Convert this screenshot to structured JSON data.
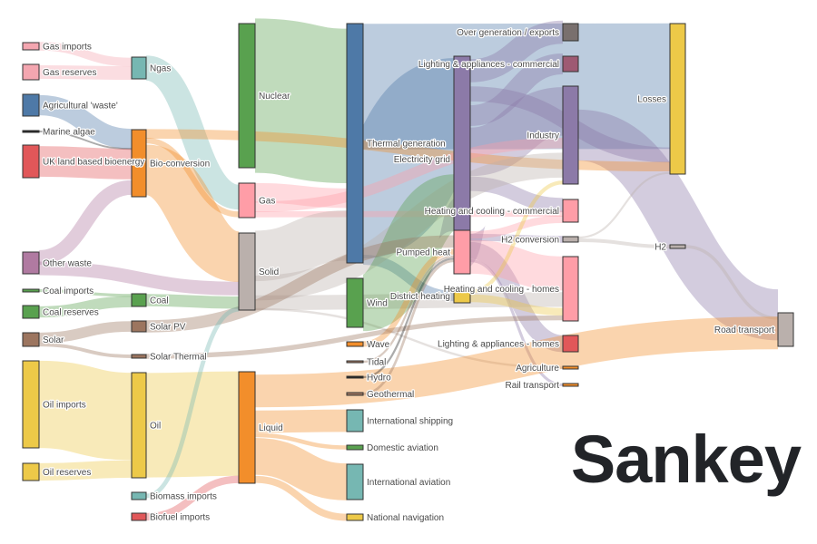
{
  "title": "Sankey",
  "chart_data": {
    "type": "sankey",
    "nodes": [
      {
        "name": "Gas imports",
        "color": "#f4a6b0"
      },
      {
        "name": "Gas reserves",
        "color": "#f4a6b0"
      },
      {
        "name": "Agricultural 'waste'",
        "color": "#4e79a7"
      },
      {
        "name": "Marine algae",
        "color": "#222222"
      },
      {
        "name": "UK land based bioenergy",
        "color": "#e15759"
      },
      {
        "name": "Other waste",
        "color": "#b07aa1"
      },
      {
        "name": "Coal imports",
        "color": "#59a14f"
      },
      {
        "name": "Coal reserves",
        "color": "#59a14f"
      },
      {
        "name": "Solar",
        "color": "#9c755f"
      },
      {
        "name": "Oil imports",
        "color": "#edc948"
      },
      {
        "name": "Oil reserves",
        "color": "#edc948"
      },
      {
        "name": "Ngas",
        "color": "#76b7b2"
      },
      {
        "name": "Bio-conversion",
        "color": "#f28e2b"
      },
      {
        "name": "Coal",
        "color": "#59a14f"
      },
      {
        "name": "Solar PV",
        "color": "#9c755f"
      },
      {
        "name": "Solar Thermal",
        "color": "#9c755f"
      },
      {
        "name": "Oil",
        "color": "#edc948"
      },
      {
        "name": "Biomass imports",
        "color": "#76b7b2"
      },
      {
        "name": "Biofuel imports",
        "color": "#e15759"
      },
      {
        "name": "Nuclear",
        "color": "#59a14f"
      },
      {
        "name": "Gas",
        "color": "#ff9da7"
      },
      {
        "name": "Solid",
        "color": "#bab0ac"
      },
      {
        "name": "Liquid",
        "color": "#f28e2b"
      },
      {
        "name": "Thermal generation",
        "color": "#4e79a7"
      },
      {
        "name": "Wind",
        "color": "#59a14f"
      },
      {
        "name": "Wave",
        "color": "#f28e2b"
      },
      {
        "name": "Tidal",
        "color": "#9c755f"
      },
      {
        "name": "Hydro",
        "color": "#222222"
      },
      {
        "name": "Geothermal",
        "color": "#9c755f"
      },
      {
        "name": "International shipping",
        "color": "#76b7b2"
      },
      {
        "name": "Domestic aviation",
        "color": "#59a14f"
      },
      {
        "name": "International aviation",
        "color": "#76b7b2"
      },
      {
        "name": "National navigation",
        "color": "#edc948"
      },
      {
        "name": "Electricity grid",
        "color": "#8c7aa8"
      },
      {
        "name": "Pumped heat",
        "color": "#ff9da7"
      },
      {
        "name": "District heating",
        "color": "#edc948"
      },
      {
        "name": "Over generation / exports",
        "color": "#79706e"
      },
      {
        "name": "Lighting & appliances - commercial",
        "color": "#9e5a73"
      },
      {
        "name": "Industry",
        "color": "#8c7aa8"
      },
      {
        "name": "Heating and cooling - commercial",
        "color": "#ff9da7"
      },
      {
        "name": "H2 conversion",
        "color": "#bab0ac"
      },
      {
        "name": "Heating and cooling - homes",
        "color": "#ff9da7"
      },
      {
        "name": "Lighting & appliances - homes",
        "color": "#e15759"
      },
      {
        "name": "Agriculture",
        "color": "#f28e2b"
      },
      {
        "name": "Rail transport",
        "color": "#f28e2b"
      },
      {
        "name": "Losses",
        "color": "#edc948"
      },
      {
        "name": "H2",
        "color": "#bab0ac"
      },
      {
        "name": "Road transport",
        "color": "#bab0ac"
      }
    ],
    "links": [
      {
        "source": "Gas imports",
        "target": "Ngas",
        "value": 6
      },
      {
        "source": "Gas reserves",
        "target": "Ngas",
        "value": 7
      },
      {
        "source": "Agricultural 'waste'",
        "target": "Bio-conversion",
        "value": 11
      },
      {
        "source": "Marine algae",
        "target": "Bio-conversion",
        "value": 1
      },
      {
        "source": "UK land based bioenergy",
        "target": "Bio-conversion",
        "value": 17
      },
      {
        "source": "Other waste",
        "target": "Bio-conversion",
        "value": 11
      },
      {
        "source": "Other waste",
        "target": "Solid",
        "value": 11
      },
      {
        "source": "Coal imports",
        "target": "Coal",
        "value": 2
      },
      {
        "source": "Coal reserves",
        "target": "Coal",
        "value": 6
      },
      {
        "source": "Solar",
        "target": "Solar PV",
        "value": 6
      },
      {
        "source": "Solar",
        "target": "Solar Thermal",
        "value": 2
      },
      {
        "source": "Oil imports",
        "target": "Oil",
        "value": 45
      },
      {
        "source": "Oil reserves",
        "target": "Oil",
        "value": 9
      },
      {
        "source": "Ngas",
        "target": "Gas",
        "value": 13
      },
      {
        "source": "Bio-conversion",
        "target": "Gas",
        "value": 3
      },
      {
        "source": "Bio-conversion",
        "target": "Solid",
        "value": 32
      },
      {
        "source": "Bio-conversion",
        "target": "Losses",
        "value": 5
      },
      {
        "source": "Coal",
        "target": "Solid",
        "value": 8
      },
      {
        "source": "Oil",
        "target": "Liquid",
        "value": 54
      },
      {
        "source": "Biomass imports",
        "target": "Solid",
        "value": 1
      },
      {
        "source": "Biofuel imports",
        "target": "Liquid",
        "value": 4
      },
      {
        "source": "Nuclear",
        "target": "Thermal generation",
        "value": 75
      },
      {
        "source": "Gas",
        "target": "Thermal generation",
        "value": 9
      },
      {
        "source": "Gas",
        "target": "Heating and cooling - commercial",
        "value": 3
      },
      {
        "source": "Gas",
        "target": "Industry",
        "value": 4
      },
      {
        "source": "Solid",
        "target": "Thermal generation",
        "value": 25
      },
      {
        "source": "Solid",
        "target": "Industry",
        "value": 10
      },
      {
        "source": "Solid",
        "target": "Heating and cooling - homes",
        "value": 6
      },
      {
        "source": "Solid",
        "target": "Agriculture",
        "value": 1
      },
      {
        "source": "Liquid",
        "target": "Road transport",
        "value": 20
      },
      {
        "source": "Liquid",
        "target": "International shipping",
        "value": 12
      },
      {
        "source": "Liquid",
        "target": "Domestic aviation",
        "value": 2
      },
      {
        "source": "Liquid",
        "target": "International aviation",
        "value": 20
      },
      {
        "source": "Liquid",
        "target": "National navigation",
        "value": 4
      },
      {
        "source": "Thermal generation",
        "target": "Electricity grid",
        "value": 50
      },
      {
        "source": "Thermal generation",
        "target": "Losses",
        "value": 59
      },
      {
        "source": "Thermal generation",
        "target": "District heating",
        "value": 3
      },
      {
        "source": "Wind",
        "target": "Electricity grid",
        "value": 28
      },
      {
        "source": "Solar PV",
        "target": "Electricity grid",
        "value": 6
      },
      {
        "source": "Solar Thermal",
        "target": "Heating and cooling - homes",
        "value": 2
      },
      {
        "source": "Wave",
        "target": "Electricity grid",
        "value": 3
      },
      {
        "source": "Tidal",
        "target": "Electricity grid",
        "value": 1
      },
      {
        "source": "Hydro",
        "target": "Electricity grid",
        "value": 1
      },
      {
        "source": "Geothermal",
        "target": "Electricity grid",
        "value": 1
      },
      {
        "source": "Electricity grid",
        "target": "Over generation / exports",
        "value": 10
      },
      {
        "source": "Electricity grid",
        "target": "Lighting & appliances - commercial",
        "value": 9
      },
      {
        "source": "Electricity grid",
        "target": "Industry",
        "value": 16
      },
      {
        "source": "Electricity grid",
        "target": "Heating and cooling - commercial",
        "value": 6
      },
      {
        "source": "Electricity grid",
        "target": "Pumped heat",
        "value": 14
      },
      {
        "source": "Electricity grid",
        "target": "H2 conversion",
        "value": 3
      },
      {
        "source": "Electricity grid",
        "target": "Lighting & appliances - homes",
        "value": 6
      },
      {
        "source": "Electricity grid",
        "target": "Rail transport",
        "value": 1
      },
      {
        "source": "Electricity grid",
        "target": "Losses",
        "value": 6
      },
      {
        "source": "Pumped heat",
        "target": "Heating and cooling - homes",
        "value": 11
      },
      {
        "source": "Pumped heat",
        "target": "Heating and cooling - commercial",
        "value": 3
      },
      {
        "source": "District heating",
        "target": "Heating and cooling - homes",
        "value": 2
      },
      {
        "source": "District heating",
        "target": "Industry",
        "value": 1
      },
      {
        "source": "H2 conversion",
        "target": "H2",
        "value": 2
      },
      {
        "source": "H2 conversion",
        "target": "Losses",
        "value": 1
      },
      {
        "source": "H2",
        "target": "Road transport",
        "value": 2
      },
      {
        "source": "Industry",
        "target": "Road transport",
        "value": 3
      }
    ]
  }
}
